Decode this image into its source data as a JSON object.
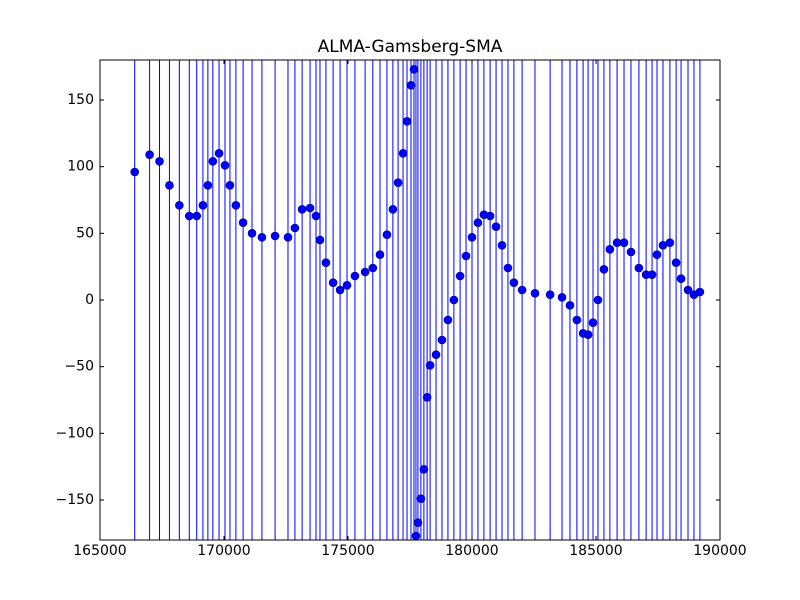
{
  "chart_data": {
    "type": "scatter",
    "title": "ALMA-Gamsberg-SMA",
    "x": [
      166400,
      167000,
      167400,
      167800,
      168200,
      168600,
      168900,
      169150,
      169350,
      169550,
      169800,
      170040,
      170240,
      170480,
      170770,
      171130,
      171530,
      172060,
      172580,
      172860,
      173150,
      173470,
      173710,
      173870,
      174110,
      174400,
      174680,
      174960,
      175280,
      175690,
      176000,
      176290,
      176570,
      176810,
      177020,
      177220,
      177380,
      177540,
      177660,
      177740,
      177820,
      177940,
      178060,
      178190,
      178310,
      178550,
      178790,
      179030,
      179270,
      179520,
      179760,
      180000,
      180240,
      180480,
      180730,
      180970,
      181210,
      181450,
      181690,
      182020,
      182540,
      183150,
      183630,
      183950,
      184230,
      184480,
      184680,
      184880,
      185080,
      185320,
      185560,
      185850,
      186130,
      186410,
      186730,
      187020,
      187260,
      187460,
      187700,
      187980,
      188230,
      188430,
      188710,
      188950,
      189190
    ],
    "values": [
      96,
      109,
      104,
      86,
      71,
      63,
      63,
      71,
      86,
      104,
      110,
      101,
      86,
      71,
      58,
      50,
      47,
      48,
      47,
      54,
      68,
      69,
      63,
      45,
      28,
      13,
      7.5,
      11,
      18,
      21,
      24,
      34,
      49,
      68,
      88,
      110,
      134,
      161,
      173,
      -177,
      -167,
      -149,
      -127,
      -73,
      -49,
      -41,
      -30,
      -15,
      0,
      18,
      33,
      47,
      58,
      64,
      63,
      55,
      41,
      24,
      13,
      7.5,
      5,
      4,
      2,
      -4,
      -15,
      -25,
      -26,
      -17,
      0,
      23,
      38,
      43,
      43,
      36,
      24,
      19,
      19,
      34,
      41,
      43,
      28,
      16,
      7.5,
      4,
      6
    ],
    "color": "#0000ff",
    "line_color": "#0000ff",
    "vlines": true,
    "xlim": [
      165000,
      190000
    ],
    "xticks": [
      165000,
      170000,
      175000,
      180000,
      185000,
      190000
    ],
    "ylim": [
      -180,
      180
    ],
    "yticks": [
      {
        "value": -150,
        "label": "−150"
      },
      {
        "value": -100,
        "label": "−100"
      },
      {
        "value": -50,
        "label": "−50"
      },
      0,
      50,
      100,
      150
    ]
  }
}
